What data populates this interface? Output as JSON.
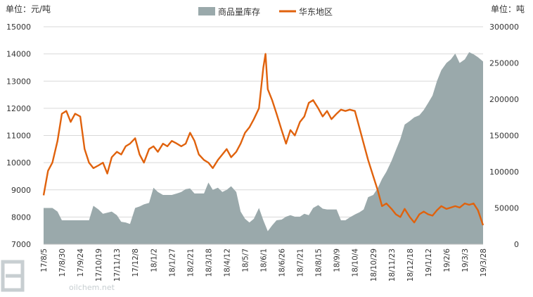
{
  "chart_data": {
    "type": "area+line",
    "title": "",
    "left_axis_unit": "单位：元/吨",
    "right_axis_unit": "单位：吨",
    "legend": [
      {
        "name": "商品量库存",
        "color": "#9aa9ab",
        "kind": "area",
        "axis": "right"
      },
      {
        "name": "华东地区",
        "color": "#e0620d",
        "kind": "line",
        "axis": "left"
      }
    ],
    "x_tick_labels": [
      "17/8/5",
      "17/8/30",
      "17/9/24",
      "17/10/19",
      "17/11/13",
      "17/12/8",
      "18/1/2",
      "18/1/27",
      "18/2/21",
      "18/3/18",
      "18/4/12",
      "18/5/7",
      "18/6/1",
      "18/6/26",
      "18/7/21",
      "18/8/15",
      "18/9/9",
      "18/10/4",
      "18/10/29",
      "18/11/23",
      "18/12/18",
      "19/1/12",
      "19/2/6",
      "19/3/3",
      "19/3/28"
    ],
    "left_ylim": [
      7000,
      15000
    ],
    "left_yticks": [
      7000,
      8000,
      9000,
      10000,
      11000,
      12000,
      13000,
      14000,
      15000
    ],
    "right_ylim": [
      0,
      300000
    ],
    "right_yticks": [
      0,
      50000,
      100000,
      150000,
      200000,
      250000,
      300000
    ],
    "series": [
      {
        "name": "华东地区",
        "axis": "left",
        "points": [
          [
            "17/8/5",
            8800
          ],
          [
            "17/8/11",
            9700
          ],
          [
            "17/8/17",
            10000
          ],
          [
            "17/8/24",
            10800
          ],
          [
            "17/8/30",
            11800
          ],
          [
            "17/9/5",
            11900
          ],
          [
            "17/9/11",
            11500
          ],
          [
            "17/9/17",
            11800
          ],
          [
            "17/9/24",
            11700
          ],
          [
            "17/9/30",
            10500
          ],
          [
            "17/10/6",
            10000
          ],
          [
            "17/10/12",
            9800
          ],
          [
            "17/10/19",
            9900
          ],
          [
            "17/10/25",
            10000
          ],
          [
            "17/10/31",
            9600
          ],
          [
            "17/11/6",
            10200
          ],
          [
            "17/11/13",
            10400
          ],
          [
            "17/11/19",
            10300
          ],
          [
            "17/11/25",
            10600
          ],
          [
            "17/12/1",
            10700
          ],
          [
            "17/12/8",
            10900
          ],
          [
            "17/12/14",
            10300
          ],
          [
            "17/12/20",
            10000
          ],
          [
            "17/12/27",
            10500
          ],
          [
            "18/1/2",
            10600
          ],
          [
            "18/1/8",
            10400
          ],
          [
            "18/1/15",
            10700
          ],
          [
            "18/1/21",
            10600
          ],
          [
            "18/1/27",
            10800
          ],
          [
            "18/2/3",
            10700
          ],
          [
            "18/2/9",
            10600
          ],
          [
            "18/2/15",
            10700
          ],
          [
            "18/2/21",
            11100
          ],
          [
            "18/2/27",
            10800
          ],
          [
            "18/3/5",
            10300
          ],
          [
            "18/3/12",
            10100
          ],
          [
            "18/3/18",
            10000
          ],
          [
            "18/3/24",
            9800
          ],
          [
            "18/3/31",
            10100
          ],
          [
            "18/4/6",
            10300
          ],
          [
            "18/4/12",
            10500
          ],
          [
            "18/4/18",
            10200
          ],
          [
            "18/4/25",
            10400
          ],
          [
            "18/5/1",
            10700
          ],
          [
            "18/5/7",
            11100
          ],
          [
            "18/5/13",
            11300
          ],
          [
            "18/5/19",
            11600
          ],
          [
            "18/5/26",
            12000
          ],
          [
            "18/6/1",
            13500
          ],
          [
            "18/6/4",
            14000
          ],
          [
            "18/6/7",
            12700
          ],
          [
            "18/6/13",
            12300
          ],
          [
            "18/6/19",
            11800
          ],
          [
            "18/6/26",
            11200
          ],
          [
            "18/7/2",
            10700
          ],
          [
            "18/7/8",
            11200
          ],
          [
            "18/7/14",
            11000
          ],
          [
            "18/7/21",
            11500
          ],
          [
            "18/7/27",
            11700
          ],
          [
            "18/8/2",
            12200
          ],
          [
            "18/8/8",
            12300
          ],
          [
            "18/8/15",
            12000
          ],
          [
            "18/8/21",
            11700
          ],
          [
            "18/8/27",
            11900
          ],
          [
            "18/9/2",
            11600
          ],
          [
            "18/9/9",
            11800
          ],
          [
            "18/9/15",
            11950
          ],
          [
            "18/9/21",
            11900
          ],
          [
            "18/9/27",
            11950
          ],
          [
            "18/10/4",
            11900
          ],
          [
            "18/10/10",
            11300
          ],
          [
            "18/10/16",
            10700
          ],
          [
            "18/10/22",
            10100
          ],
          [
            "18/10/29",
            9500
          ],
          [
            "18/11/4",
            9000
          ],
          [
            "18/11/10",
            8400
          ],
          [
            "18/11/16",
            8500
          ],
          [
            "18/11/23",
            8300
          ],
          [
            "18/11/29",
            8100
          ],
          [
            "18/12/5",
            8000
          ],
          [
            "18/12/11",
            8300
          ],
          [
            "18/12/18",
            8000
          ],
          [
            "18/12/24",
            7800
          ],
          [
            "18/12/31",
            8100
          ],
          [
            "19/1/6",
            8200
          ],
          [
            "19/1/12",
            8100
          ],
          [
            "19/1/18",
            8050
          ],
          [
            "19/1/24",
            8250
          ],
          [
            "19/1/30",
            8400
          ],
          [
            "19/2/6",
            8300
          ],
          [
            "19/2/12",
            8350
          ],
          [
            "19/2/18",
            8400
          ],
          [
            "19/2/24",
            8350
          ],
          [
            "19/3/3",
            8500
          ],
          [
            "19/3/9",
            8450
          ],
          [
            "19/3/15",
            8500
          ],
          [
            "19/3/21",
            8250
          ],
          [
            "19/3/28",
            7700
          ]
        ]
      },
      {
        "name": "商品量库存",
        "axis": "right",
        "points": [
          [
            "17/8/5",
            50000
          ],
          [
            "17/8/17",
            50000
          ],
          [
            "17/8/24",
            45000
          ],
          [
            "17/8/30",
            33000
          ],
          [
            "17/9/11",
            33000
          ],
          [
            "17/9/24",
            33000
          ],
          [
            "17/10/6",
            33000
          ],
          [
            "17/10/12",
            53000
          ],
          [
            "17/10/19",
            48000
          ],
          [
            "17/10/25",
            42000
          ],
          [
            "17/11/6",
            45000
          ],
          [
            "17/11/13",
            40000
          ],
          [
            "17/11/19",
            31000
          ],
          [
            "17/11/25",
            30000
          ],
          [
            "17/12/1",
            28000
          ],
          [
            "17/12/8",
            50000
          ],
          [
            "17/12/14",
            52000
          ],
          [
            "17/12/20",
            55000
          ],
          [
            "17/12/27",
            57000
          ],
          [
            "18/1/2",
            78000
          ],
          [
            "18/1/8",
            72000
          ],
          [
            "18/1/15",
            68000
          ],
          [
            "18/1/27",
            68000
          ],
          [
            "18/2/3",
            70000
          ],
          [
            "18/2/9",
            72000
          ],
          [
            "18/2/15",
            76000
          ],
          [
            "18/2/21",
            77000
          ],
          [
            "18/2/27",
            70000
          ],
          [
            "18/3/5",
            70000
          ],
          [
            "18/3/12",
            70000
          ],
          [
            "18/3/18",
            85000
          ],
          [
            "18/3/24",
            75000
          ],
          [
            "18/3/31",
            78000
          ],
          [
            "18/4/6",
            72000
          ],
          [
            "18/4/12",
            75000
          ],
          [
            "18/4/18",
            80000
          ],
          [
            "18/4/25",
            72000
          ],
          [
            "18/5/1",
            45000
          ],
          [
            "18/5/7",
            35000
          ],
          [
            "18/5/13",
            30000
          ],
          [
            "18/5/19",
            35000
          ],
          [
            "18/5/26",
            50000
          ],
          [
            "18/6/1",
            33000
          ],
          [
            "18/6/7",
            18000
          ],
          [
            "18/6/13",
            26000
          ],
          [
            "18/6/19",
            33000
          ],
          [
            "18/6/26",
            34000
          ],
          [
            "18/7/2",
            38000
          ],
          [
            "18/7/8",
            40000
          ],
          [
            "18/7/14",
            38000
          ],
          [
            "18/7/21",
            38000
          ],
          [
            "18/7/27",
            42000
          ],
          [
            "18/8/2",
            40000
          ],
          [
            "18/8/8",
            50000
          ],
          [
            "18/8/15",
            54000
          ],
          [
            "18/8/21",
            49000
          ],
          [
            "18/8/27",
            48000
          ],
          [
            "18/9/2",
            48000
          ],
          [
            "18/9/9",
            48000
          ],
          [
            "18/9/15",
            33000
          ],
          [
            "18/9/21",
            33000
          ],
          [
            "18/9/27",
            37000
          ],
          [
            "18/10/4",
            41000
          ],
          [
            "18/10/10",
            44000
          ],
          [
            "18/10/16",
            48000
          ],
          [
            "18/10/22",
            65000
          ],
          [
            "18/10/29",
            68000
          ],
          [
            "18/11/4",
            77000
          ],
          [
            "18/11/10",
            90000
          ],
          [
            "18/11/16",
            100000
          ],
          [
            "18/11/23",
            115000
          ],
          [
            "18/11/29",
            130000
          ],
          [
            "18/12/5",
            145000
          ],
          [
            "18/12/11",
            165000
          ],
          [
            "18/12/18",
            170000
          ],
          [
            "18/12/24",
            175000
          ],
          [
            "18/12/31",
            178000
          ],
          [
            "19/1/6",
            185000
          ],
          [
            "19/1/12",
            195000
          ],
          [
            "19/1/18",
            205000
          ],
          [
            "19/1/24",
            225000
          ],
          [
            "19/1/30",
            240000
          ],
          [
            "19/2/6",
            250000
          ],
          [
            "19/2/12",
            255000
          ],
          [
            "19/2/18",
            263000
          ],
          [
            "19/2/24",
            250000
          ],
          [
            "19/3/3",
            255000
          ],
          [
            "19/3/9",
            265000
          ],
          [
            "19/3/15",
            262000
          ],
          [
            "19/3/21",
            258000
          ],
          [
            "19/3/28",
            252000
          ]
        ]
      }
    ]
  },
  "watermark": {
    "text": "oilchem.net",
    "logo_color": "#9aa7ad"
  }
}
